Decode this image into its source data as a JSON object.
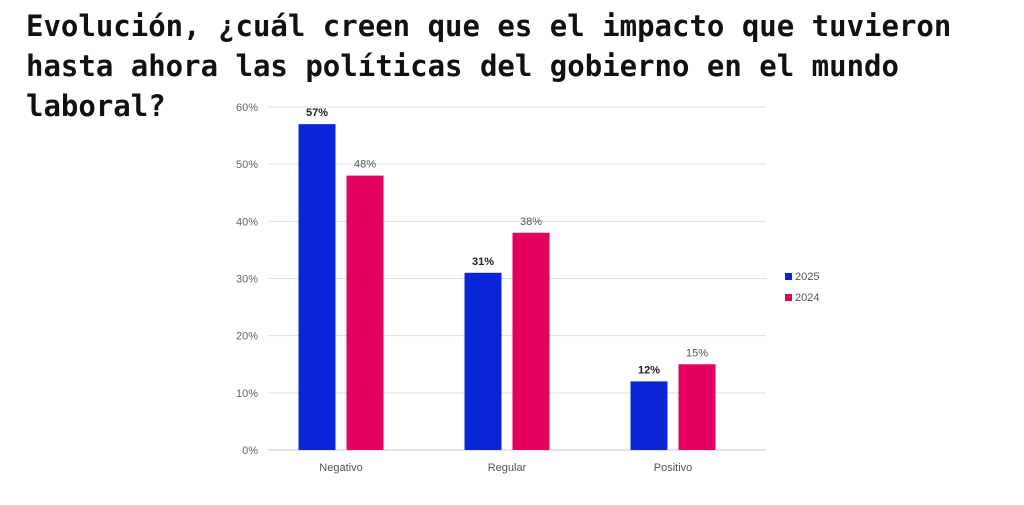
{
  "chart_data": {
    "type": "bar",
    "title": "Evolución, ¿cuál creen que es el impacto que tuvieron hasta ahora las políticas del gobierno en el mundo laboral?",
    "categories": [
      "Negativo",
      "Regular",
      "Positivo"
    ],
    "series": [
      {
        "name": "2025",
        "values": [
          57,
          31,
          12
        ],
        "labels": [
          "57%",
          "31%",
          "12%"
        ],
        "color": "#0a24d8"
      },
      {
        "name": "2024",
        "values": [
          48,
          38,
          15
        ],
        "labels": [
          "48%",
          "38%",
          "15%"
        ],
        "color": "#e3005f"
      }
    ],
    "xlabel": "",
    "ylabel": "",
    "ylim": [
      0,
      60
    ],
    "yticks": [
      0,
      10,
      20,
      30,
      40,
      50,
      60
    ],
    "ytick_labels": [
      "0%",
      "10%",
      "20%",
      "30%",
      "40%",
      "50%",
      "60%"
    ],
    "grid": true,
    "legend_position": "right"
  }
}
